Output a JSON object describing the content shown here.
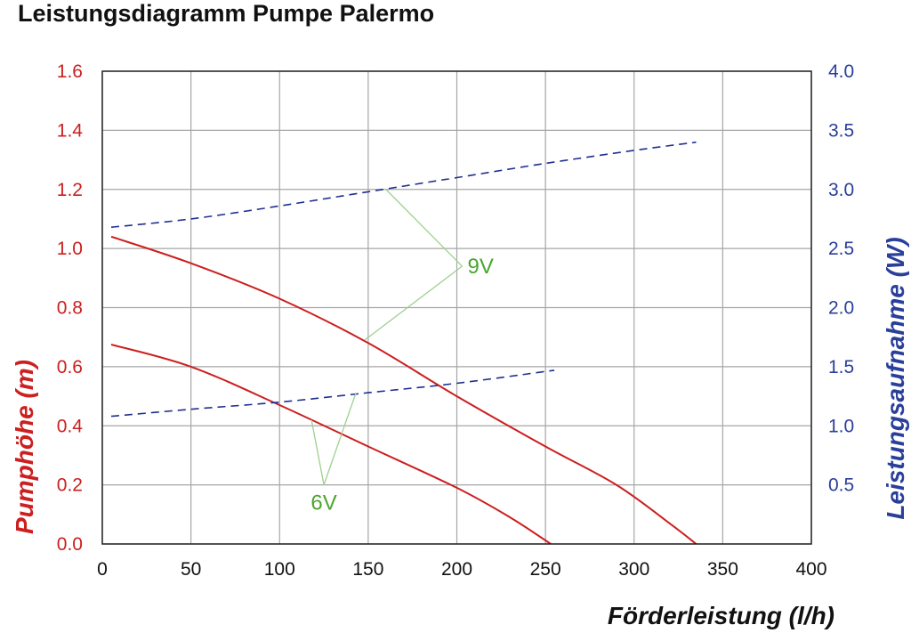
{
  "chart_data": {
    "type": "line",
    "title": "Leistungsdiagramm Pumpe Palermo",
    "xlabel": "Förderleistung (l/h)",
    "ylabel_left": "Pumphöhe (m)",
    "ylabel_right": "Leistungsaufnahme (W)",
    "xlim": [
      0,
      400
    ],
    "ylim_left": [
      0,
      1.6
    ],
    "ylim_right": [
      0,
      4.0
    ],
    "x_ticks": [
      "0",
      "50",
      "100",
      "150",
      "200",
      "250",
      "300",
      "350",
      "400"
    ],
    "y_left_ticks": [
      "0.0",
      "0.2",
      "0.4",
      "0.6",
      "0.8",
      "1.0",
      "1.2",
      "1.4",
      "1.6"
    ],
    "y_right_ticks": [
      "0.5",
      "1.0",
      "1.5",
      "2.0",
      "2.5",
      "3.0",
      "3.5",
      "4.0"
    ],
    "grid": true,
    "colors": {
      "head": "#cc1f1f",
      "power": "#1f2f8f",
      "annotation": "#4aa62e",
      "left_axis": "#cc1f1f",
      "right_axis": "#2a3f9a",
      "grid": "#a6a6a6",
      "frame": "#222222"
    },
    "series": [
      {
        "id": "head-9v",
        "axis": "left",
        "style": "solid",
        "x": [
          5,
          50,
          100,
          150,
          200,
          250,
          290,
          320,
          335
        ],
        "y": [
          1.04,
          0.95,
          0.83,
          0.68,
          0.5,
          0.33,
          0.2,
          0.07,
          0.0
        ]
      },
      {
        "id": "power-9v",
        "axis": "right",
        "style": "dashed",
        "x": [
          5,
          50,
          100,
          150,
          200,
          250,
          300,
          335
        ],
        "y": [
          2.68,
          2.75,
          2.86,
          2.98,
          3.1,
          3.22,
          3.33,
          3.4
        ]
      },
      {
        "id": "head-6v",
        "axis": "left",
        "style": "solid",
        "x": [
          5,
          50,
          100,
          150,
          200,
          230,
          253
        ],
        "y": [
          0.675,
          0.6,
          0.47,
          0.33,
          0.19,
          0.09,
          0.0
        ]
      },
      {
        "id": "power-6v",
        "axis": "right",
        "style": "dashed",
        "x": [
          5,
          50,
          100,
          150,
          200,
          255
        ],
        "y": [
          1.08,
          1.14,
          1.2,
          1.28,
          1.36,
          1.47
        ]
      }
    ],
    "annotations": [
      {
        "label": "9V",
        "pos": [
          203,
          0.94
        ],
        "targets": [
          [
            160,
            1.2
          ],
          [
            148,
            0.69
          ]
        ]
      },
      {
        "label": "6V",
        "pos": [
          125,
          0.2
        ],
        "targets": [
          [
            118,
            0.42
          ],
          [
            143,
            0.51
          ]
        ]
      }
    ]
  }
}
